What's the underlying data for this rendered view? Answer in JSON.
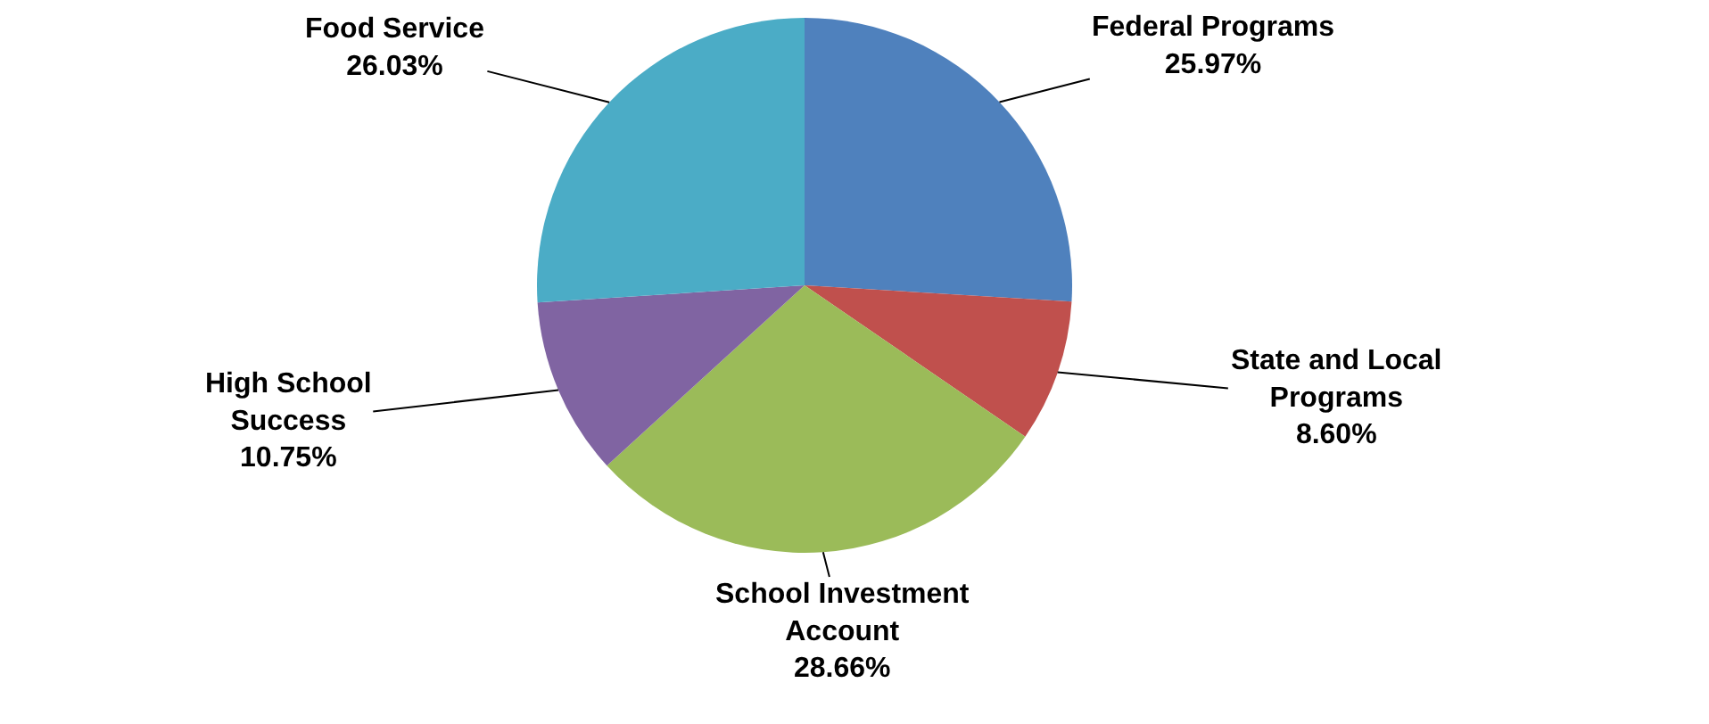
{
  "chart_data": {
    "type": "pie",
    "categories": [
      "Federal Programs",
      "State and Local Programs",
      "School Investment Account",
      "High School Success",
      "Food Service"
    ],
    "values": [
      25.97,
      8.6,
      28.66,
      10.75,
      26.03
    ],
    "value_labels": [
      "25.97%",
      "8.60%",
      "28.66%",
      "10.75%",
      "26.03%"
    ],
    "colors": [
      "#4f81bd",
      "#c0504d",
      "#9bbb59",
      "#8064a2",
      "#4bacc6"
    ]
  }
}
